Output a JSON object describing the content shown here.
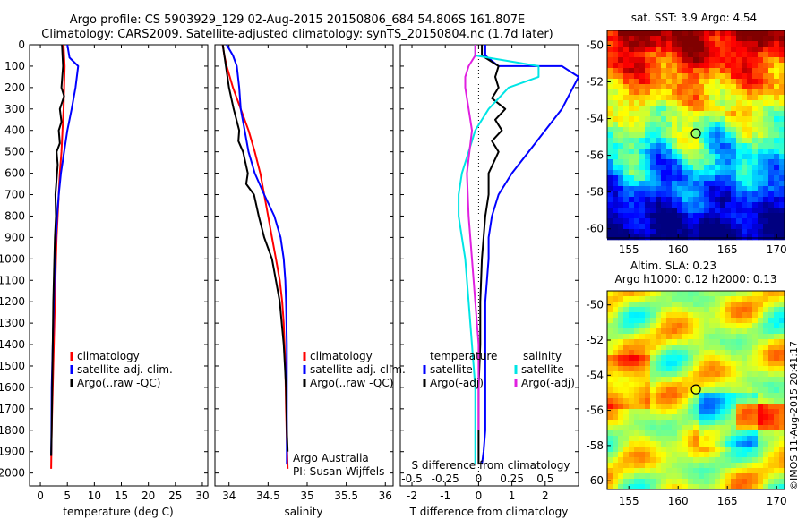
{
  "title_line1": "Argo profile: CS 5903929_129 02-Aug-2015 20150806_684 54.806S 161.807E",
  "title_line2": "Climatology: CARS2009. Satellite-adjusted climatology: synTS_20150804.nc (1.7d later)",
  "colors": {
    "red": "#ff0000",
    "blue": "#0000ff",
    "black": "#000000",
    "cyan": "#00e5e5",
    "magenta": "#e020e0"
  },
  "chart_data": [
    {
      "type": "line",
      "xlabel": "temperature (deg C)",
      "xticks": [
        "0",
        "5",
        "10",
        "15",
        "20",
        "25",
        "30"
      ],
      "yticks": [
        "0",
        "100",
        "200",
        "300",
        "400",
        "500",
        "600",
        "700",
        "800",
        "900",
        "1000",
        "1100",
        "1200",
        "1300",
        "1400",
        "1500",
        "1600",
        "1700",
        "1800",
        "1900",
        "2000"
      ],
      "xlim": [
        -2,
        31
      ],
      "ylim": [
        2060,
        0
      ],
      "legend": [
        "climatology",
        "satellite-adj. clim.",
        "Argo(..raw -QC)"
      ],
      "legend_location": "lower-center",
      "series": [
        {
          "color": "red",
          "x": [
            4.3,
            4.4,
            4.5,
            4.4,
            4.3,
            4.1,
            3.9,
            3.6,
            3.4,
            3.2,
            3.0,
            2.9,
            2.8,
            2.7,
            2.6,
            2.5,
            2.4,
            2.3,
            2.2,
            2.1,
            2.0
          ],
          "y": [
            0,
            50,
            100,
            200,
            300,
            400,
            500,
            600,
            700,
            800,
            900,
            1000,
            1100,
            1200,
            1300,
            1400,
            1500,
            1600,
            1700,
            1800,
            1980
          ]
        },
        {
          "color": "blue",
          "x": [
            5.0,
            5.4,
            7.0,
            6.5,
            5.8,
            5.0,
            4.4,
            3.8,
            3.4,
            3.1,
            2.9,
            2.7,
            2.6,
            2.5,
            2.4,
            2.3,
            2.2,
            2.1,
            2.05,
            2.0
          ],
          "y": [
            0,
            60,
            100,
            200,
            300,
            400,
            500,
            600,
            700,
            800,
            900,
            1000,
            1100,
            1200,
            1300,
            1400,
            1500,
            1600,
            1800,
            1920
          ]
        },
        {
          "color": "black",
          "x": [
            4.0,
            4.2,
            3.9,
            4.4,
            3.6,
            3.9,
            3.4,
            3.6,
            3.0,
            3.2,
            2.8,
            2.9,
            2.7,
            2.6,
            2.5,
            2.4,
            2.3,
            2.2,
            2.1,
            2.0
          ],
          "y": [
            0,
            100,
            200,
            240,
            300,
            360,
            400,
            460,
            500,
            560,
            700,
            800,
            900,
            1000,
            1100,
            1200,
            1400,
            1600,
            1800,
            1920
          ]
        }
      ]
    },
    {
      "type": "line",
      "xlabel": "salinity",
      "xticks": [
        "34",
        "34.5",
        "35",
        "35.5",
        "36"
      ],
      "xlim": [
        33.82,
        36.1
      ],
      "ylim": [
        2060,
        0
      ],
      "legend": [
        "climatology",
        "satellite-adj. clim.",
        "Argo(..raw -QC)"
      ],
      "legend_location": "lower-center",
      "annotation_lines": [
        "Argo Australia",
        "PI: Susan Wijffels"
      ],
      "series": [
        {
          "color": "red",
          "x": [
            33.92,
            33.94,
            33.97,
            34.05,
            34.15,
            34.25,
            34.33,
            34.4,
            34.45,
            34.5,
            34.55,
            34.6,
            34.65,
            34.68,
            34.7,
            34.72,
            34.73,
            34.74,
            34.75
          ],
          "y": [
            0,
            50,
            100,
            200,
            300,
            400,
            500,
            600,
            700,
            800,
            900,
            1000,
            1100,
            1200,
            1300,
            1500,
            1700,
            1850,
            1980
          ]
        },
        {
          "color": "blue",
          "x": [
            33.97,
            34.05,
            34.1,
            34.13,
            34.15,
            34.2,
            34.25,
            34.33,
            34.45,
            34.58,
            34.66,
            34.7,
            34.72,
            34.73,
            34.74,
            34.74
          ],
          "y": [
            0,
            50,
            100,
            200,
            300,
            400,
            500,
            600,
            700,
            800,
            900,
            1000,
            1100,
            1200,
            1400,
            1960
          ]
        },
        {
          "color": "black",
          "x": [
            33.92,
            33.94,
            33.96,
            34.0,
            34.06,
            34.13,
            34.12,
            34.18,
            34.24,
            34.22,
            34.32,
            34.38,
            34.45,
            34.55,
            34.65,
            34.7,
            34.73,
            34.74,
            34.75
          ],
          "y": [
            0,
            50,
            100,
            200,
            300,
            400,
            450,
            500,
            600,
            650,
            700,
            800,
            900,
            1000,
            1200,
            1400,
            1600,
            1800,
            1900
          ]
        }
      ]
    },
    {
      "type": "line",
      "xlabel": "T difference from climatology",
      "xlabel_top": "S difference from climatology",
      "xticks": [
        "-2",
        "-1",
        "0",
        "1",
        "2"
      ],
      "xticks_top": [
        "-0.5",
        "-0.25",
        "0",
        "0.25",
        "0.5"
      ],
      "xlim": [
        -2.35,
        3.0
      ],
      "ylim": [
        2060,
        0
      ],
      "zero_line": "dotted",
      "legend_left_title": "temperature",
      "legend_right_title": "salinity",
      "legend": [
        "satellite",
        "Argo(-adj)",
        "satellite",
        "Argo(-adj)"
      ],
      "legend_location": "lower-center",
      "series": [
        {
          "name": "satellite",
          "color": "blue",
          "x": [
            0.2,
            0.2,
            0.6,
            2.5,
            3.0,
            2.5,
            2.0,
            1.5,
            1.0,
            0.6,
            0.4,
            0.3,
            0.3,
            0.2,
            0.2,
            0.2,
            0.2,
            0.15,
            0.1
          ],
          "y": [
            0,
            50,
            100,
            100,
            150,
            300,
            400,
            500,
            600,
            700,
            800,
            900,
            1000,
            1200,
            1400,
            1600,
            1800,
            1900,
            1960
          ]
        },
        {
          "name": "Argo(-adj)",
          "color": "black",
          "x": [
            0.1,
            0.1,
            0.6,
            0.5,
            0.6,
            0.4,
            0.8,
            0.5,
            0.7,
            0.4,
            0.6,
            0.3,
            0.3,
            0.2,
            0.1,
            0.05,
            0.05,
            0.0,
            0.0
          ],
          "y": [
            0,
            50,
            100,
            150,
            200,
            250,
            300,
            350,
            400,
            450,
            500,
            600,
            700,
            800,
            1000,
            1200,
            1400,
            1600,
            1960
          ]
        },
        {
          "name": "satellite",
          "color": "cyan",
          "x": [
            -0.1,
            -0.1,
            1.8,
            1.8,
            0.9,
            0.3,
            -0.1,
            -0.3,
            -0.5,
            -0.6,
            -0.6,
            -0.5,
            -0.4,
            -0.3,
            -0.2,
            -0.1,
            -0.1,
            -0.1,
            -0.1
          ],
          "y": [
            0,
            50,
            100,
            150,
            200,
            300,
            400,
            500,
            600,
            700,
            800,
            900,
            1000,
            1200,
            1400,
            1600,
            1800,
            1900,
            1960
          ]
        },
        {
          "name": "Argo(-adj)",
          "color": "magenta",
          "x": [
            -0.1,
            -0.1,
            -0.3,
            -0.4,
            -0.4,
            -0.3,
            -0.2,
            -0.35,
            -0.3,
            -0.2,
            -0.1,
            0.0,
            0.0,
            0.0
          ],
          "y": [
            0,
            50,
            100,
            150,
            200,
            300,
            400,
            600,
            800,
            1000,
            1200,
            1400,
            1600,
            1800
          ]
        }
      ]
    },
    {
      "type": "heatmap",
      "title": "sat. SST: 3.9 Argo: 4.54",
      "xticks": [
        "155",
        "160",
        "165",
        "170"
      ],
      "yticks": [
        "-50",
        "-52",
        "-54",
        "-56",
        "-58",
        "-60"
      ],
      "xlim": [
        152.8,
        170.8
      ],
      "ylim": [
        -49.2,
        -60.5
      ],
      "marker": {
        "lon": 161.807,
        "lat": -54.806
      }
    },
    {
      "type": "heatmap",
      "title_line1": "Altim. SLA: 0.23",
      "title_line2": "Argo h1000: 0.12 h2000: 0.13",
      "xticks": [
        "155",
        "160",
        "165",
        "170"
      ],
      "yticks": [
        "-50",
        "-52",
        "-54",
        "-56",
        "-58",
        "-60"
      ],
      "xlim": [
        152.8,
        170.8
      ],
      "ylim": [
        -49.2,
        -60.5
      ],
      "marker": {
        "lon": 161.807,
        "lat": -54.806
      }
    }
  ],
  "side_stamp": "©IMOS 11-Aug-2015 20:41:17"
}
